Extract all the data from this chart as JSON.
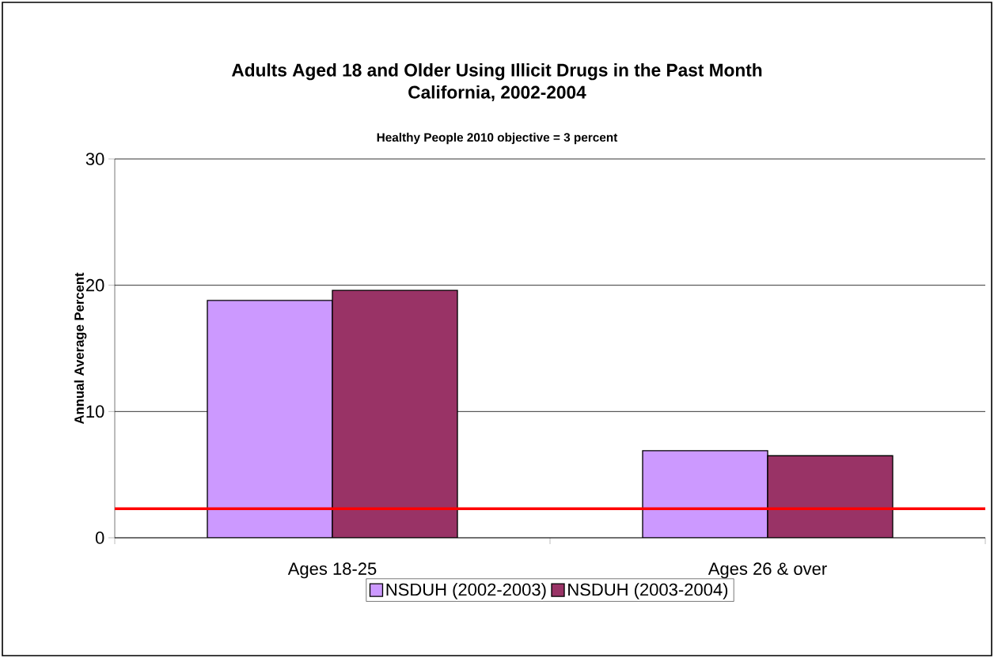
{
  "chart_data": {
    "type": "bar",
    "title": "Adults Aged 18 and Older Using Illicit Drugs in the Past Month\nCalifornia, 2002-2004",
    "subtitle": "Healthy People 2010 objective = 3 percent",
    "ylabel": "Annual Average Percent",
    "categories": [
      "Ages 18-25",
      "Ages 26 & over"
    ],
    "series": [
      {
        "name": "NSDUH (2002-2003)",
        "color": "#cc99ff",
        "values": [
          18.8,
          6.9
        ]
      },
      {
        "name": "NSDUH (2003-2004)",
        "color": "#993366",
        "values": [
          19.6,
          6.5
        ]
      }
    ],
    "ylim": [
      0,
      30
    ],
    "yticks": [
      0,
      10,
      20,
      30
    ],
    "grid": "y",
    "legend": "bottom",
    "ref_lines": [
      {
        "axis": "y",
        "value": 2.3,
        "color": "#ff0000"
      }
    ]
  }
}
